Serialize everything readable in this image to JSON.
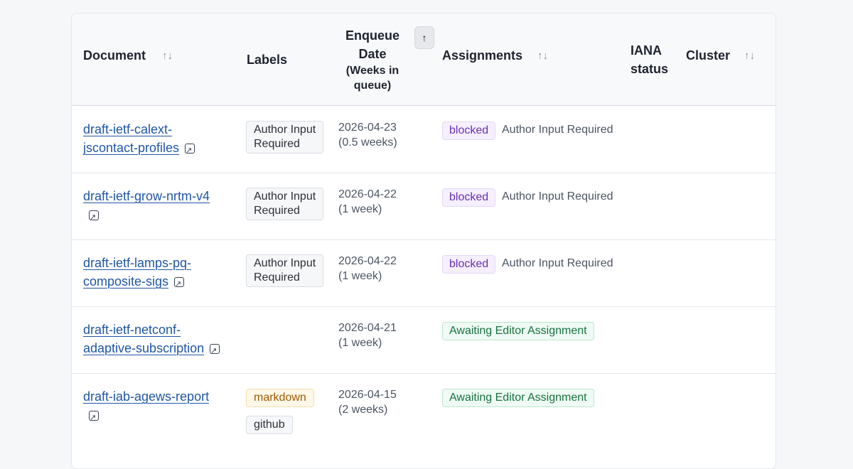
{
  "table": {
    "headers": {
      "document": "Document",
      "labels": "Labels",
      "enqueue_line1": "Enqueue",
      "enqueue_line2": "Date",
      "enqueue_sub1": "(Weeks in",
      "enqueue_sub2": "queue)",
      "assignments": "Assignments",
      "iana_line1": "IANA",
      "iana_line2": "status",
      "cluster": "Cluster"
    },
    "sort_icons": {
      "sortable": "↑↓",
      "active": "↑"
    },
    "rows": [
      {
        "doc_line1": "draft-ietf-calext-",
        "doc_line2": "jscontact-profiles",
        "labels": [
          "Author Input Required"
        ],
        "label_line1": "Author Input",
        "label_line2": "Required",
        "date": "2026-04-23",
        "weeks": "(0.5 weeks)",
        "status": "blocked",
        "status_text": "Author Input Required"
      },
      {
        "doc_line1": "draft-ietf-grow-nrtm-v4",
        "doc_line2": "",
        "label_line1": "Author Input",
        "label_line2": "Required",
        "date": "2026-04-22",
        "weeks": "(1 week)",
        "status": "blocked",
        "status_text": "Author Input Required"
      },
      {
        "doc_line1": "draft-ietf-lamps-pq-",
        "doc_line2": "composite-sigs",
        "label_line1": "Author Input",
        "label_line2": "Required",
        "date": "2026-04-22",
        "weeks": "(1 week)",
        "status": "blocked",
        "status_text": "Author Input Required"
      },
      {
        "doc_line1": "draft-ietf-netconf-",
        "doc_line2": "adaptive-subscription",
        "date": "2026-04-21",
        "weeks": "(1 week)",
        "status": "Awaiting Editor Assignment"
      },
      {
        "doc_line1": "draft-iab-agews-report",
        "doc_line2": "",
        "label_1": "markdown",
        "label_2": "github",
        "date": "2026-04-15",
        "weeks": "(2 weeks)",
        "status": "Awaiting Editor Assignment"
      }
    ]
  }
}
